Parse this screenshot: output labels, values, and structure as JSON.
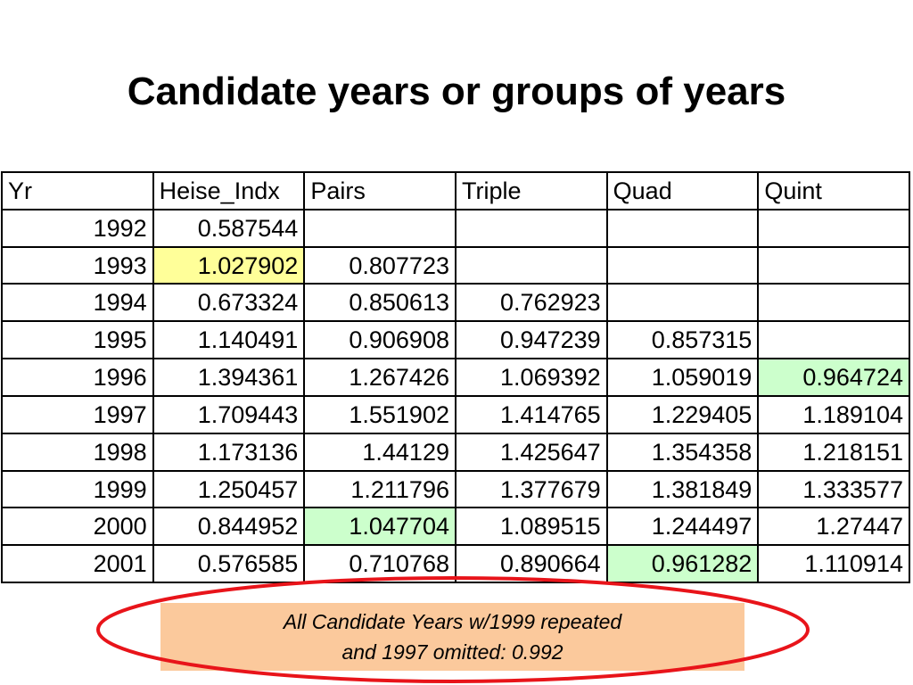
{
  "title": "Candidate years or groups of years",
  "table": {
    "header": [
      "Yr",
      "Heise_Indx",
      "Pairs",
      "Triple",
      "Quad",
      "Quint"
    ],
    "rows": [
      [
        "1992",
        "0.587544"
      ],
      [
        "1993",
        "1.027902",
        "0.807723"
      ],
      [
        "1994",
        "0.673324",
        "0.850613",
        "0.762923"
      ],
      [
        "1995",
        "1.140491",
        "0.906908",
        "0.947239",
        "0.857315"
      ],
      [
        "1996",
        "1.394361",
        "1.267426",
        "1.069392",
        "1.059019",
        "0.964724"
      ],
      [
        "1997",
        "1.709443",
        "1.551902",
        "1.414765",
        "1.229405",
        "1.189104"
      ],
      [
        "1998",
        "1.173136",
        "1.44129",
        "1.425647",
        "1.354358",
        "1.218151"
      ],
      [
        "1999",
        "1.250457",
        "1.211796",
        "1.377679",
        "1.381849",
        "1.333577"
      ],
      [
        "2000",
        "0.844952",
        "1.047704",
        "1.089515",
        "1.244497",
        "1.27447"
      ],
      [
        "2001",
        "0.576585",
        "0.710768",
        "0.890664",
        "0.961282",
        "1.110914"
      ]
    ],
    "highlights": [
      {
        "row": 1,
        "col": 1,
        "color": "#ffff99"
      },
      {
        "row": 4,
        "col": 5,
        "color": "#ccffcc"
      },
      {
        "row": 8,
        "col": 2,
        "color": "#ccffcc"
      },
      {
        "row": 9,
        "col": 4,
        "color": "#ccffcc"
      }
    ]
  },
  "note": {
    "lines": [
      "All Candidate Years w/1999 repeated",
      "and 1997 omitted: 0.992"
    ]
  }
}
